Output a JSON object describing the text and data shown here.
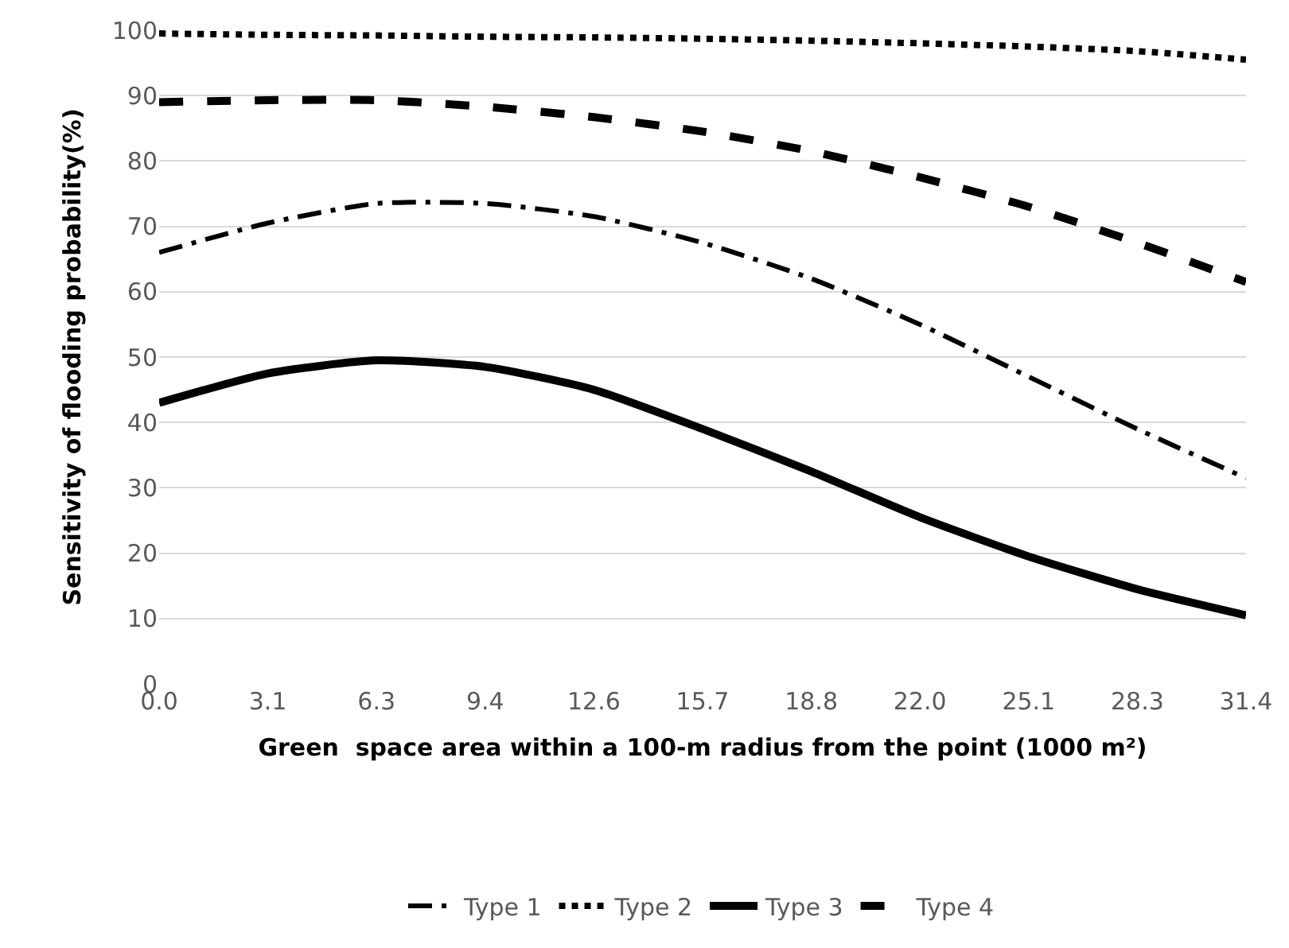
{
  "chart_data": {
    "type": "line",
    "xlabel": "Green  space area within a 100-m radius from the point (1000 m²)",
    "ylabel": "Sensitivity of flooding probability(%)",
    "categories": [
      "0.0",
      "3.1",
      "6.3",
      "9.4",
      "12.6",
      "15.7",
      "18.8",
      "22.0",
      "25.1",
      "28.3",
      "31.4"
    ],
    "series": [
      {
        "name": "Type 1",
        "color": "#000000",
        "line_style": "dashdot",
        "values": [
          66,
          70.5,
          73.5,
          73.5,
          71.5,
          67.5,
          62,
          55,
          47,
          39,
          31.5
        ]
      },
      {
        "name": "Type 2",
        "color": "#000000",
        "line_style": "dotted",
        "values": [
          99.5,
          99.3,
          99.2,
          99,
          98.9,
          98.7,
          98.4,
          98,
          97.5,
          96.8,
          95.5
        ]
      },
      {
        "name": "Type 3",
        "color": "#000000",
        "line_style": "solid",
        "values": [
          43,
          47.5,
          49.5,
          48.5,
          45,
          39,
          32.5,
          25.5,
          19.5,
          14.5,
          10.5
        ]
      },
      {
        "name": "Type 4",
        "color": "#000000",
        "line_style": "dashed",
        "values": [
          89,
          89.3,
          89.3,
          88.3,
          86.7,
          84.5,
          81.5,
          77.5,
          73,
          67.5,
          61.5
        ]
      }
    ],
    "ylim": [
      0,
      100
    ],
    "yticks": [
      0,
      10,
      20,
      30,
      40,
      50,
      60,
      70,
      80,
      90,
      100
    ],
    "grid": "y",
    "legend": "bottom",
    "marker": "none"
  }
}
